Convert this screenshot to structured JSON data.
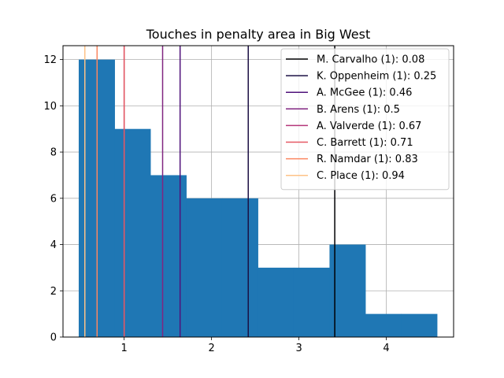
{
  "chart_data": {
    "type": "bar",
    "title": "Touches in penalty area in Big West",
    "xlabel": "",
    "ylabel": "",
    "xlim": [
      0.3,
      4.77
    ],
    "ylim": [
      0,
      12.6
    ],
    "grid": true,
    "legend_position": "top-right",
    "bar_color": "#1f77b4",
    "bins": [
      {
        "x0": 0.48,
        "x1": 0.89,
        "count": 12
      },
      {
        "x0": 0.89,
        "x1": 1.3,
        "count": 9
      },
      {
        "x0": 1.3,
        "x1": 1.71,
        "count": 7
      },
      {
        "x0": 1.71,
        "x1": 2.12,
        "count": 6
      },
      {
        "x0": 2.12,
        "x1": 2.53,
        "count": 6
      },
      {
        "x0": 2.53,
        "x1": 2.94,
        "count": 3
      },
      {
        "x0": 2.94,
        "x1": 3.35,
        "count": 3
      },
      {
        "x0": 3.35,
        "x1": 3.76,
        "count": 4
      },
      {
        "x0": 3.76,
        "x1": 4.17,
        "count": 1
      },
      {
        "x0": 4.17,
        "x1": 4.58,
        "count": 1
      }
    ],
    "x_ticks": [
      1,
      2,
      3,
      4
    ],
    "x_tick_labels": [
      "1",
      "2",
      "3",
      "4"
    ],
    "y_ticks": [
      0,
      2,
      4,
      6,
      8,
      10,
      12
    ],
    "y_tick_labels": [
      "0",
      "2",
      "4",
      "6",
      "8",
      "10",
      "12"
    ],
    "reference_lines": [
      {
        "label": "M. Carvalho (1): 0.08",
        "x": 3.41,
        "color": "#000004"
      },
      {
        "label": "K. Oppenheim (1): 0.25",
        "x": 2.42,
        "color": "#1c1044"
      },
      {
        "label": "A. McGee (1): 0.46",
        "x": 1.64,
        "color": "#4f127b"
      },
      {
        "label": "B. Arens (1): 0.5",
        "x": 1.44,
        "color": "#812581"
      },
      {
        "label": "A. Valverde (1): 0.67",
        "x": 1.0,
        "color": "#b5367a"
      },
      {
        "label": "C. Barrett (1): 0.71",
        "x": 1.0,
        "color": "#e55964"
      },
      {
        "label": "R. Namdar (1): 0.83",
        "x": 0.69,
        "color": "#fb8761"
      },
      {
        "label": "C. Place (1): 0.94",
        "x": 0.55,
        "color": "#fec287"
      }
    ]
  }
}
